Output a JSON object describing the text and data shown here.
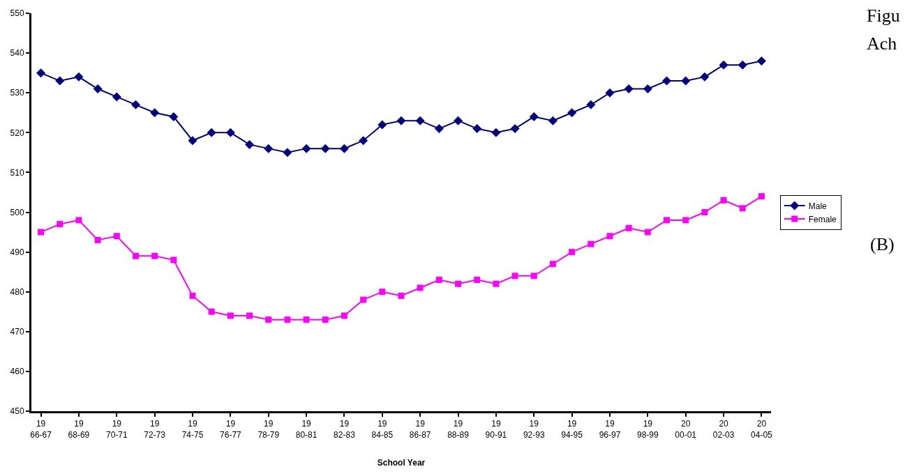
{
  "chart_data": {
    "type": "line",
    "xlabel": "School Year",
    "categories": [
      "19\n66-67",
      null,
      "19\n68-69",
      null,
      "19\n70-71",
      null,
      "19\n72-73",
      null,
      "19\n74-75",
      null,
      "19\n76-77",
      null,
      "19\n78-79",
      null,
      "19\n80-81",
      null,
      "19\n82-83",
      null,
      "19\n84-85",
      null,
      "19\n86-87",
      null,
      "19\n88-89",
      null,
      "19\n90-91",
      null,
      "19\n92-93",
      null,
      "19\n94-95",
      null,
      "19\n96-97",
      null,
      "19\n98-99",
      null,
      "20\n00-01",
      null,
      "20\n02-03",
      null,
      "20\n04-05"
    ],
    "series": [
      {
        "name": "Male",
        "color": "#000080",
        "marker": "diamond",
        "values": [
          535,
          533,
          534,
          531,
          529,
          527,
          525,
          524,
          518,
          520,
          520,
          517,
          516,
          515,
          516,
          516,
          516,
          518,
          522,
          523,
          523,
          521,
          523,
          521,
          520,
          521,
          524,
          523,
          525,
          527,
          530,
          531,
          531,
          533,
          533,
          534,
          537,
          537,
          538
        ]
      },
      {
        "name": "Female",
        "color": "#ff00ff",
        "marker": "square",
        "values": [
          495,
          497,
          498,
          493,
          494,
          489,
          489,
          488,
          479,
          475,
          474,
          474,
          473,
          473,
          473,
          473,
          474,
          478,
          480,
          479,
          481,
          483,
          482,
          483,
          482,
          484,
          484,
          487,
          490,
          492,
          494,
          496,
          495,
          498,
          498,
          500,
          503,
          501,
          504
        ]
      }
    ],
    "ylim": [
      450,
      550
    ],
    "yticks": [
      450,
      460,
      470,
      480,
      490,
      500,
      510,
      520,
      530,
      540,
      550
    ],
    "legend": "right",
    "line_style": "solid",
    "annotations": [
      "Figu",
      "Ach",
      "(B)"
    ]
  }
}
